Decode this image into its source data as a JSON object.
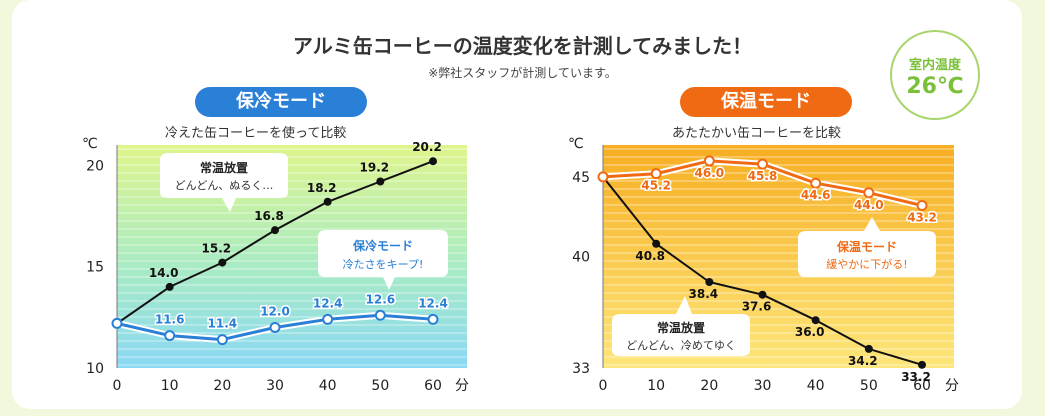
{
  "title": "アルミ缶コーヒーの温度変化を計測してみました！",
  "subtitle": "※弊社スタッフが計測しています。",
  "room_badge": {
    "label": "室内温度",
    "value": "26℃"
  },
  "cold_mode": {
    "label": "保冷モード",
    "description": "冷えた缶コーヒーを使って比較",
    "callout_normal": {
      "title": "常温放置",
      "text": "どんどん、ぬるく…"
    },
    "callout_mode": {
      "title": "保冷モード",
      "text": "冷たさをキープ!"
    }
  },
  "warm_mode": {
    "label": "保温モード",
    "description": "あたたかい缶コーヒーを比較",
    "callout_normal": {
      "title": "常温放置",
      "text": "どんどん、冷めてゆく"
    },
    "callout_mode": {
      "title": "保温モード",
      "text": "緩やかに下がる!"
    }
  },
  "chart_data": [
    {
      "type": "line",
      "x": [
        0,
        10,
        20,
        30,
        40,
        50,
        60
      ],
      "xlabel": "分",
      "ylabel": "℃",
      "ylim": [
        10,
        21
      ],
      "yticks": [
        10,
        15,
        20
      ],
      "series": [
        {
          "name": "常温放置",
          "values": [
            12.2,
            14.0,
            15.2,
            16.8,
            18.2,
            19.2,
            20.2
          ],
          "color": "#111111",
          "labels": [
            "",
            "14.0",
            "15.2",
            "16.8",
            "18.2",
            "19.2",
            "20.2"
          ]
        },
        {
          "name": "保冷モード",
          "values": [
            12.2,
            11.6,
            11.4,
            12.0,
            12.4,
            12.6,
            12.4
          ],
          "color": "#2a7fd6",
          "labels": [
            "",
            "11.6",
            "11.4",
            "12.0",
            "12.4",
            "12.6",
            "12.4"
          ]
        }
      ]
    },
    {
      "type": "line",
      "x": [
        0,
        10,
        20,
        30,
        40,
        50,
        60
      ],
      "xlabel": "分",
      "ylabel": "℃",
      "ylim": [
        33,
        47
      ],
      "yticks": [
        33,
        40,
        45
      ],
      "series": [
        {
          "name": "常温放置",
          "values": [
            45,
            40.8,
            38.4,
            37.6,
            36.0,
            34.2,
            33.2
          ],
          "color": "#111111",
          "labels": [
            "",
            "40.8",
            "38.4",
            "37.6",
            "36.0",
            "34.2",
            "33.2"
          ]
        },
        {
          "name": "保温モード",
          "values": [
            45,
            45.2,
            46.0,
            45.8,
            44.6,
            44.0,
            43.2
          ],
          "color": "#ef6a12",
          "labels": [
            "",
            "45.2",
            "46.0",
            "45.8",
            "44.6",
            "44.0",
            "43.2"
          ]
        }
      ]
    }
  ]
}
